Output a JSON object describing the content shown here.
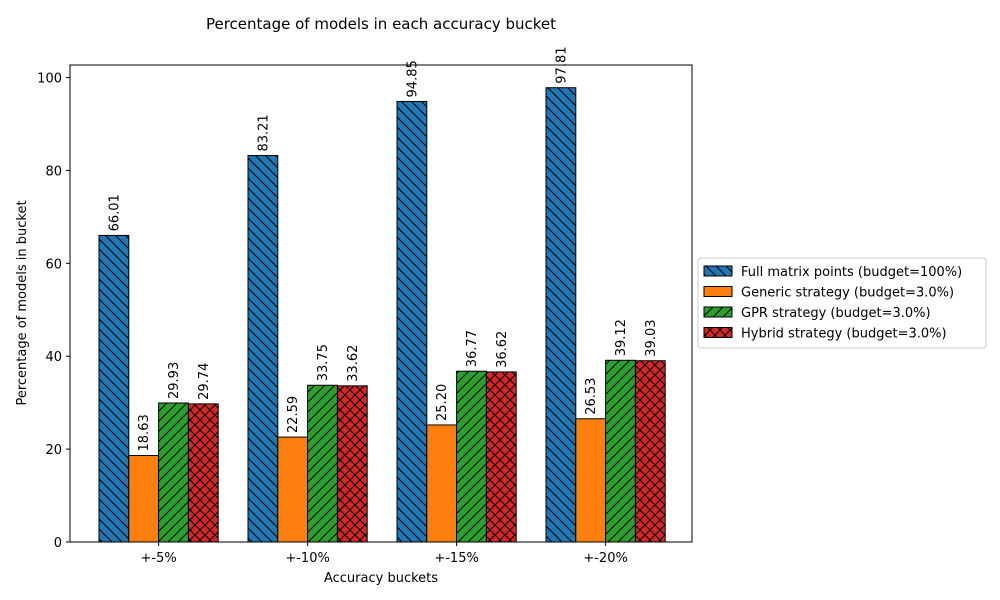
{
  "chart_data": {
    "type": "bar",
    "title": "Percentage of models in each accuracy bucket",
    "xlabel": "Accuracy buckets",
    "ylabel": "Percentage of models in bucket",
    "categories": [
      "+-5%",
      "+-10%",
      "+-15%",
      "+-20%"
    ],
    "ylim": [
      0,
      102.7
    ],
    "yticks": [
      0,
      20,
      40,
      60,
      80,
      100
    ],
    "grid": false,
    "legend_position": "center-right outside",
    "series": [
      {
        "name": "Full matrix points (budget=100%)",
        "color": "#1f77b4",
        "hatch": "backslash",
        "values": [
          66.01,
          83.21,
          94.85,
          97.81
        ],
        "labels": [
          "66.01",
          "83.21",
          "94.85",
          "97.81"
        ]
      },
      {
        "name": "Generic strategy (budget=3.0%)",
        "color": "#ff7f0e",
        "hatch": "none",
        "values": [
          18.63,
          22.59,
          25.2,
          26.53
        ],
        "labels": [
          "18.63",
          "22.59",
          "25.20",
          "26.53"
        ]
      },
      {
        "name": "GPR strategy (budget=3.0%)",
        "color": "#2ca02c",
        "hatch": "slash",
        "values": [
          29.93,
          33.75,
          36.77,
          39.12
        ],
        "labels": [
          "29.93",
          "33.75",
          "36.77",
          "39.12"
        ]
      },
      {
        "name": "Hybrid strategy (budget=3.0%)",
        "color": "#d62728",
        "hatch": "cross",
        "values": [
          29.74,
          33.62,
          36.62,
          39.03
        ],
        "labels": [
          "29.74",
          "33.62",
          "36.62",
          "39.03"
        ]
      }
    ]
  }
}
